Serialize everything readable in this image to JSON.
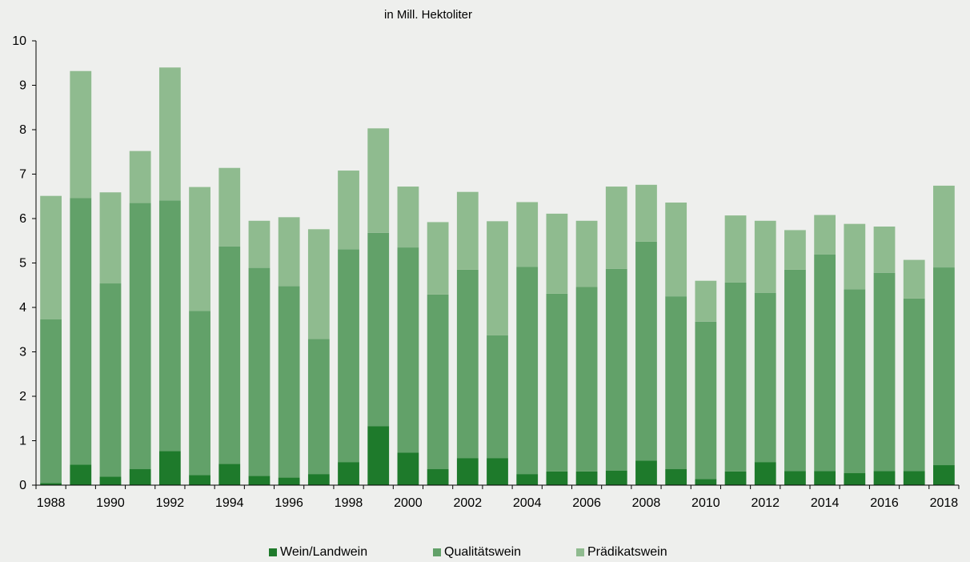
{
  "chart_data": {
    "type": "bar",
    "stacked": true,
    "unit_label": "in Mill. Hektoliter",
    "ylim": [
      0,
      10
    ],
    "yticks": [
      "0",
      "1",
      "2",
      "3",
      "4",
      "5",
      "6",
      "7",
      "8",
      "9",
      "10"
    ],
    "x_tick_labels": [
      "1988",
      "1990",
      "1992",
      "1994",
      "1996",
      "1998",
      "2000",
      "2002",
      "2004",
      "2006",
      "2008",
      "2010",
      "2012",
      "2014",
      "2016",
      "2018"
    ],
    "categories": [
      "1988",
      "1989",
      "1990",
      "1991",
      "1992",
      "1993",
      "1994",
      "1995",
      "1996",
      "1997",
      "1998",
      "1999",
      "2000",
      "2001",
      "2002",
      "2003",
      "2004",
      "2005",
      "2006",
      "2007",
      "2008",
      "2009",
      "2010",
      "2011",
      "2012",
      "2013",
      "2014",
      "2015",
      "2016",
      "2017",
      "2018"
    ],
    "series": [
      {
        "name": "Wein/Landwein",
        "color": "#1e7a2b",
        "values": [
          0.05,
          0.46,
          0.19,
          0.36,
          0.77,
          0.23,
          0.48,
          0.21,
          0.17,
          0.25,
          0.52,
          1.33,
          0.73,
          0.36,
          0.61,
          0.61,
          0.25,
          0.31,
          0.31,
          0.33,
          0.55,
          0.36,
          0.14,
          0.31,
          0.52,
          0.32,
          0.32,
          0.27,
          0.32,
          0.32,
          0.45
        ]
      },
      {
        "name": "Qualitätswein",
        "color": "#62a169",
        "values": [
          3.68,
          6.0,
          4.35,
          5.99,
          5.64,
          3.69,
          4.89,
          4.68,
          4.31,
          3.04,
          4.79,
          4.35,
          4.62,
          3.93,
          4.24,
          2.76,
          4.66,
          4.0,
          4.15,
          4.54,
          4.93,
          3.89,
          3.54,
          4.25,
          3.81,
          4.53,
          4.87,
          4.14,
          4.46,
          3.88,
          4.45
        ]
      },
      {
        "name": "Prädikatswein",
        "color": "#8fbb8f",
        "values": [
          2.78,
          2.86,
          2.05,
          1.17,
          2.99,
          2.79,
          1.77,
          1.06,
          1.55,
          2.47,
          1.77,
          2.35,
          1.37,
          1.63,
          1.75,
          2.57,
          1.46,
          1.8,
          1.49,
          1.85,
          1.28,
          2.11,
          0.92,
          1.51,
          1.62,
          0.89,
          0.89,
          1.47,
          1.04,
          0.87,
          1.84
        ]
      }
    ],
    "legend_position": "bottom-center",
    "grid": false
  }
}
